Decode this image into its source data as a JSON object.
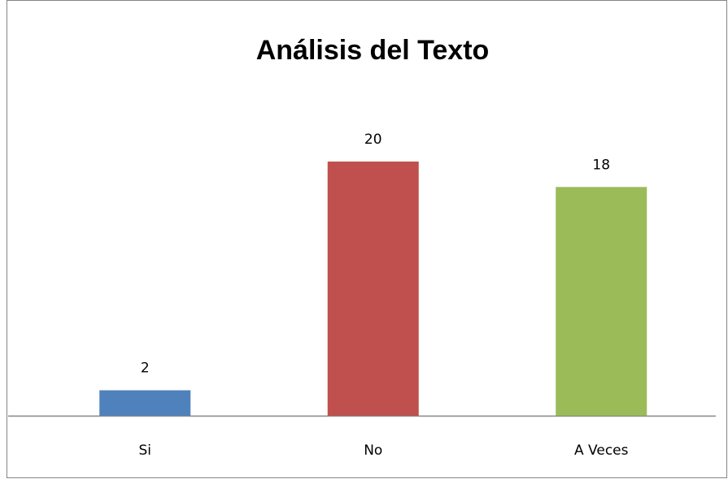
{
  "chart_data": {
    "type": "bar",
    "title": "Análisis del Texto",
    "categories": [
      "Si",
      "No",
      "A Veces"
    ],
    "values": [
      2,
      20,
      18
    ],
    "colors": [
      "#4f81bd",
      "#c0504d",
      "#9bbb59"
    ]
  }
}
